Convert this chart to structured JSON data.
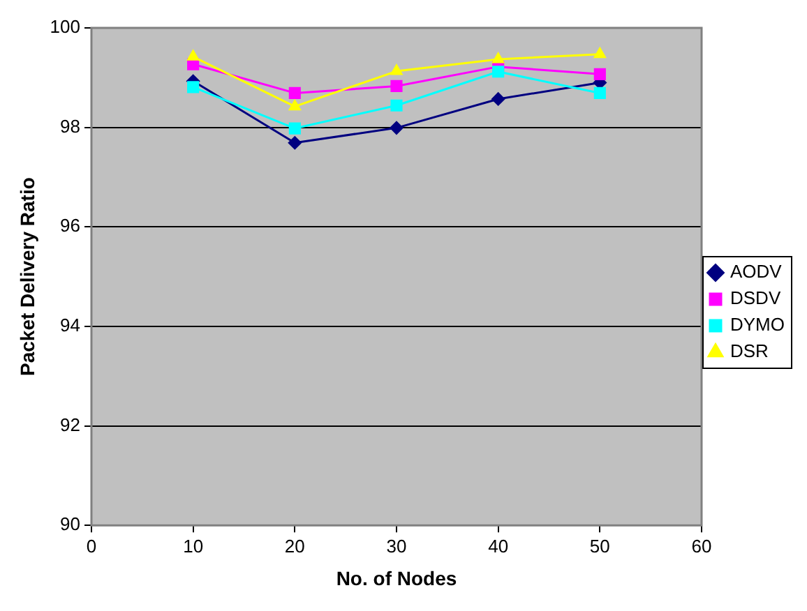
{
  "chart_data": {
    "type": "line",
    "xlabel": "No. of Nodes",
    "ylabel": "Packet Delivery Ratio",
    "x": [
      10,
      20,
      30,
      40,
      50
    ],
    "series": [
      {
        "name": "AODV",
        "color": "#000080",
        "marker": "diamond",
        "values": [
          98.93,
          97.69,
          97.99,
          98.57,
          98.9
        ]
      },
      {
        "name": "DSDV",
        "color": "#ff00ff",
        "marker": "square",
        "values": [
          99.27,
          98.69,
          98.83,
          99.22,
          99.07
        ]
      },
      {
        "name": "DYMO",
        "color": "#00ffff",
        "marker": "square",
        "values": [
          98.81,
          97.98,
          98.44,
          99.12,
          98.69
        ]
      },
      {
        "name": "DSR",
        "color": "#ffff00",
        "marker": "triangle",
        "values": [
          99.42,
          98.42,
          99.13,
          99.37,
          99.47
        ]
      }
    ],
    "xlim": [
      0,
      60
    ],
    "xticks": [
      0,
      10,
      20,
      30,
      40,
      50,
      60
    ],
    "ylim": [
      90,
      100
    ],
    "yticks": [
      90,
      92,
      94,
      96,
      98,
      100
    ],
    "grid": "y",
    "legend": "right"
  }
}
